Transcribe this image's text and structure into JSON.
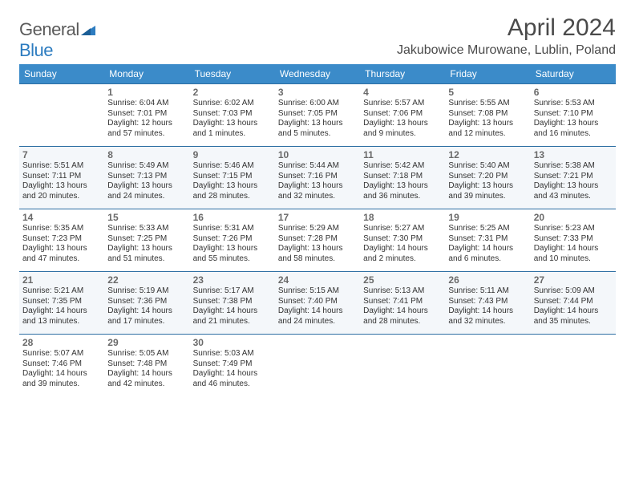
{
  "logo": {
    "part1": "General",
    "part2": "Blue"
  },
  "title": "April 2024",
  "location": "Jakubowice Murowane, Lublin, Poland",
  "colors": {
    "header_bg": "#3b8bc9",
    "divider": "#2d6fa3",
    "alt_row_bg": "#f4f7fa",
    "text": "#333333",
    "logo_gray": "#5a5a5a",
    "logo_blue": "#2d7cc0"
  },
  "weekdays": [
    "Sunday",
    "Monday",
    "Tuesday",
    "Wednesday",
    "Thursday",
    "Friday",
    "Saturday"
  ],
  "start_offset": 1,
  "days": [
    {
      "n": 1,
      "sr": "6:04 AM",
      "ss": "7:01 PM",
      "dl": "12 hours and 57 minutes."
    },
    {
      "n": 2,
      "sr": "6:02 AM",
      "ss": "7:03 PM",
      "dl": "13 hours and 1 minutes."
    },
    {
      "n": 3,
      "sr": "6:00 AM",
      "ss": "7:05 PM",
      "dl": "13 hours and 5 minutes."
    },
    {
      "n": 4,
      "sr": "5:57 AM",
      "ss": "7:06 PM",
      "dl": "13 hours and 9 minutes."
    },
    {
      "n": 5,
      "sr": "5:55 AM",
      "ss": "7:08 PM",
      "dl": "13 hours and 12 minutes."
    },
    {
      "n": 6,
      "sr": "5:53 AM",
      "ss": "7:10 PM",
      "dl": "13 hours and 16 minutes."
    },
    {
      "n": 7,
      "sr": "5:51 AM",
      "ss": "7:11 PM",
      "dl": "13 hours and 20 minutes."
    },
    {
      "n": 8,
      "sr": "5:49 AM",
      "ss": "7:13 PM",
      "dl": "13 hours and 24 minutes."
    },
    {
      "n": 9,
      "sr": "5:46 AM",
      "ss": "7:15 PM",
      "dl": "13 hours and 28 minutes."
    },
    {
      "n": 10,
      "sr": "5:44 AM",
      "ss": "7:16 PM",
      "dl": "13 hours and 32 minutes."
    },
    {
      "n": 11,
      "sr": "5:42 AM",
      "ss": "7:18 PM",
      "dl": "13 hours and 36 minutes."
    },
    {
      "n": 12,
      "sr": "5:40 AM",
      "ss": "7:20 PM",
      "dl": "13 hours and 39 minutes."
    },
    {
      "n": 13,
      "sr": "5:38 AM",
      "ss": "7:21 PM",
      "dl": "13 hours and 43 minutes."
    },
    {
      "n": 14,
      "sr": "5:35 AM",
      "ss": "7:23 PM",
      "dl": "13 hours and 47 minutes."
    },
    {
      "n": 15,
      "sr": "5:33 AM",
      "ss": "7:25 PM",
      "dl": "13 hours and 51 minutes."
    },
    {
      "n": 16,
      "sr": "5:31 AM",
      "ss": "7:26 PM",
      "dl": "13 hours and 55 minutes."
    },
    {
      "n": 17,
      "sr": "5:29 AM",
      "ss": "7:28 PM",
      "dl": "13 hours and 58 minutes."
    },
    {
      "n": 18,
      "sr": "5:27 AM",
      "ss": "7:30 PM",
      "dl": "14 hours and 2 minutes."
    },
    {
      "n": 19,
      "sr": "5:25 AM",
      "ss": "7:31 PM",
      "dl": "14 hours and 6 minutes."
    },
    {
      "n": 20,
      "sr": "5:23 AM",
      "ss": "7:33 PM",
      "dl": "14 hours and 10 minutes."
    },
    {
      "n": 21,
      "sr": "5:21 AM",
      "ss": "7:35 PM",
      "dl": "14 hours and 13 minutes."
    },
    {
      "n": 22,
      "sr": "5:19 AM",
      "ss": "7:36 PM",
      "dl": "14 hours and 17 minutes."
    },
    {
      "n": 23,
      "sr": "5:17 AM",
      "ss": "7:38 PM",
      "dl": "14 hours and 21 minutes."
    },
    {
      "n": 24,
      "sr": "5:15 AM",
      "ss": "7:40 PM",
      "dl": "14 hours and 24 minutes."
    },
    {
      "n": 25,
      "sr": "5:13 AM",
      "ss": "7:41 PM",
      "dl": "14 hours and 28 minutes."
    },
    {
      "n": 26,
      "sr": "5:11 AM",
      "ss": "7:43 PM",
      "dl": "14 hours and 32 minutes."
    },
    {
      "n": 27,
      "sr": "5:09 AM",
      "ss": "7:44 PM",
      "dl": "14 hours and 35 minutes."
    },
    {
      "n": 28,
      "sr": "5:07 AM",
      "ss": "7:46 PM",
      "dl": "14 hours and 39 minutes."
    },
    {
      "n": 29,
      "sr": "5:05 AM",
      "ss": "7:48 PM",
      "dl": "14 hours and 42 minutes."
    },
    {
      "n": 30,
      "sr": "5:03 AM",
      "ss": "7:49 PM",
      "dl": "14 hours and 46 minutes."
    }
  ],
  "labels": {
    "sunrise": "Sunrise: ",
    "sunset": "Sunset: ",
    "daylight": "Daylight: "
  }
}
